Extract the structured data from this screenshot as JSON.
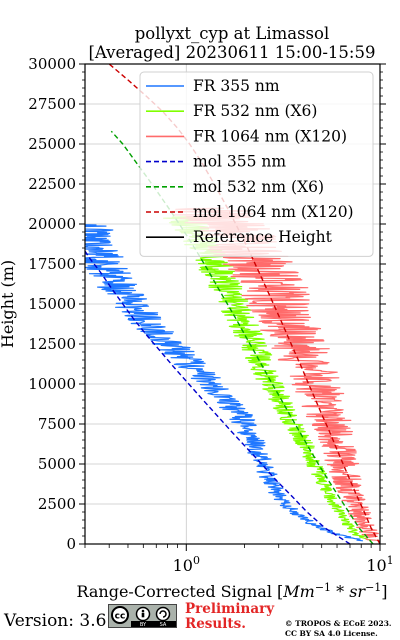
{
  "chart_data": {
    "type": "line",
    "title": "pollyxt_cyp at Limassol",
    "subtitle": "[Averaged] 20230611 15:00-15:59",
    "xlabel": "Range-Corrected Signal [Mm^-1 * sr^-1]",
    "ylabel": "Height (m)",
    "xscale": "log",
    "xlim": [
      0.3,
      10
    ],
    "ylim": [
      0,
      30000
    ],
    "x_ticks": [
      "10^0",
      "10^1"
    ],
    "y_ticks": [
      "0",
      "2500",
      "5000",
      "7500",
      "10000",
      "12500",
      "15000",
      "17500",
      "20000",
      "22500",
      "25000",
      "27500",
      "30000"
    ],
    "grid": true,
    "legend_position": "top-right",
    "legend": [
      {
        "label": "FR 355 nm",
        "color": "#1f77ff",
        "style": "solid"
      },
      {
        "label": "FR 532 nm (X6)",
        "color": "#80ff00",
        "style": "solid"
      },
      {
        "label": "FR 1064 nm (X120)",
        "color": "#ff6b6b",
        "style": "solid"
      },
      {
        "label": "mol 355 nm",
        "color": "#0000cc",
        "style": "dashed"
      },
      {
        "label": "mol 532 nm (X6)",
        "color": "#00a000",
        "style": "dashed"
      },
      {
        "label": "mol 1064 nm (X120)",
        "color": "#cc0000",
        "style": "dashed"
      },
      {
        "label": "Reference Height",
        "color": "#000000",
        "style": "solid"
      }
    ],
    "series": [
      {
        "name": "FR 355 nm",
        "color": "#1f77ff",
        "noise": 0.06,
        "points": [
          [
            8.0,
            200
          ],
          [
            6.0,
            600
          ],
          [
            4.5,
            1200
          ],
          [
            3.6,
            2000
          ],
          [
            3.0,
            3000
          ],
          [
            2.7,
            4000
          ],
          [
            2.5,
            5000
          ],
          [
            2.3,
            6000
          ],
          [
            2.1,
            7000
          ],
          [
            1.9,
            8000
          ],
          [
            1.6,
            9000
          ],
          [
            1.35,
            10000
          ],
          [
            1.1,
            11000
          ],
          [
            0.9,
            12000
          ],
          [
            0.75,
            13000
          ],
          [
            0.62,
            14000
          ],
          [
            0.52,
            15000
          ],
          [
            0.45,
            16000
          ],
          [
            0.4,
            17000
          ],
          [
            0.36,
            18000
          ],
          [
            0.33,
            19000
          ],
          [
            0.3,
            20000
          ]
        ]
      },
      {
        "name": "FR 532 nm (X6)",
        "color": "#80ff00",
        "noise": 0.05,
        "points": [
          [
            9.0,
            200
          ],
          [
            7.5,
            600
          ],
          [
            6.5,
            1500
          ],
          [
            5.8,
            2500
          ],
          [
            5.2,
            3500
          ],
          [
            4.8,
            4500
          ],
          [
            4.4,
            5500
          ],
          [
            4.0,
            6500
          ],
          [
            3.6,
            7500
          ],
          [
            3.2,
            8500
          ],
          [
            2.9,
            9500
          ],
          [
            2.6,
            10500
          ],
          [
            2.4,
            11500
          ],
          [
            2.2,
            12500
          ],
          [
            2.0,
            13500
          ],
          [
            1.85,
            14500
          ],
          [
            1.7,
            15500
          ],
          [
            1.55,
            16500
          ],
          [
            1.4,
            17500
          ],
          [
            1.25,
            18500
          ],
          [
            1.1,
            19500
          ],
          [
            0.95,
            20500
          ]
        ]
      },
      {
        "name": "FR 1064 nm (X120)",
        "color": "#ff6b6b",
        "noise": 0.1,
        "points": [
          [
            9.5,
            200
          ],
          [
            8.5,
            1000
          ],
          [
            7.8,
            2000
          ],
          [
            7.2,
            3000
          ],
          [
            6.8,
            4000
          ],
          [
            6.4,
            5000
          ],
          [
            6.0,
            6000
          ],
          [
            5.7,
            7000
          ],
          [
            5.4,
            8000
          ],
          [
            5.0,
            9000
          ],
          [
            4.7,
            10000
          ],
          [
            4.3,
            11000
          ],
          [
            4.0,
            12000
          ],
          [
            3.6,
            13000
          ],
          [
            3.3,
            14000
          ],
          [
            3.0,
            15000
          ],
          [
            2.8,
            16000
          ],
          [
            2.5,
            17000
          ],
          [
            2.2,
            18000
          ],
          [
            1.9,
            19000
          ],
          [
            1.6,
            20000
          ],
          [
            1.3,
            21000
          ]
        ]
      },
      {
        "name": "mol 355 nm",
        "color": "#0000cc",
        "dashed": true,
        "points": [
          [
            7.0,
            0
          ],
          [
            5.2,
            1000
          ],
          [
            4.2,
            2000
          ],
          [
            3.5,
            3000
          ],
          [
            2.9,
            4000
          ],
          [
            2.45,
            5000
          ],
          [
            2.05,
            6000
          ],
          [
            1.72,
            7000
          ],
          [
            1.45,
            8000
          ],
          [
            1.22,
            9000
          ],
          [
            1.03,
            10000
          ],
          [
            0.87,
            11000
          ],
          [
            0.74,
            12000
          ],
          [
            0.63,
            13000
          ],
          [
            0.54,
            14000
          ],
          [
            0.47,
            15000
          ],
          [
            0.41,
            16000
          ],
          [
            0.36,
            17000
          ],
          [
            0.32,
            17800
          ],
          [
            0.3,
            18300
          ]
        ]
      },
      {
        "name": "mol 532 nm (X6)",
        "color": "#00a000",
        "dashed": true,
        "points": [
          [
            9.2,
            0
          ],
          [
            7.8,
            1000
          ],
          [
            6.9,
            2000
          ],
          [
            6.1,
            3000
          ],
          [
            5.4,
            4000
          ],
          [
            4.8,
            5000
          ],
          [
            4.3,
            6000
          ],
          [
            3.85,
            7000
          ],
          [
            3.45,
            8000
          ],
          [
            3.1,
            9000
          ],
          [
            2.78,
            10000
          ],
          [
            2.5,
            11000
          ],
          [
            2.25,
            12000
          ],
          [
            2.02,
            13000
          ],
          [
            1.82,
            14000
          ],
          [
            1.63,
            15000
          ],
          [
            1.46,
            16000
          ],
          [
            1.31,
            17000
          ],
          [
            1.17,
            18000
          ],
          [
            1.04,
            19000
          ],
          [
            0.92,
            20000
          ],
          [
            0.81,
            21000
          ],
          [
            0.71,
            22000
          ],
          [
            0.62,
            23000
          ],
          [
            0.54,
            24000
          ],
          [
            0.47,
            25000
          ],
          [
            0.41,
            25800
          ]
        ]
      },
      {
        "name": "mol 1064 nm (X120)",
        "color": "#cc0000",
        "dashed": true,
        "points": [
          [
            10.0,
            0
          ],
          [
            9.0,
            1000
          ],
          [
            8.3,
            2000
          ],
          [
            7.6,
            3000
          ],
          [
            7.0,
            4000
          ],
          [
            6.45,
            5000
          ],
          [
            5.95,
            6000
          ],
          [
            5.5,
            7000
          ],
          [
            5.05,
            8000
          ],
          [
            4.65,
            9000
          ],
          [
            4.28,
            10000
          ],
          [
            3.95,
            11000
          ],
          [
            3.63,
            12000
          ],
          [
            3.34,
            13000
          ],
          [
            3.07,
            14000
          ],
          [
            2.82,
            15000
          ],
          [
            2.59,
            16000
          ],
          [
            2.37,
            17000
          ],
          [
            2.17,
            18000
          ],
          [
            1.98,
            19000
          ],
          [
            1.8,
            20000
          ],
          [
            1.63,
            21000
          ],
          [
            1.47,
            22000
          ],
          [
            1.32,
            23000
          ],
          [
            1.18,
            24000
          ],
          [
            1.04,
            25000
          ],
          [
            0.9,
            26000
          ],
          [
            0.76,
            27000
          ],
          [
            0.62,
            28000
          ],
          [
            0.5,
            29000
          ],
          [
            0.4,
            30000
          ]
        ]
      },
      {
        "name": "Reference Height",
        "color": "#000000",
        "noise": 0.04,
        "segments": [
          [
            [
              2.1,
              6500
            ],
            [
              2.3,
              6000
            ],
            [
              2.5,
              5500
            ],
            [
              2.7,
              5000
            ]
          ],
          [
            [
              3.7,
              7500
            ],
            [
              4.0,
              6800
            ],
            [
              4.3,
              6200
            ]
          ],
          [
            [
              5.4,
              6400
            ],
            [
              6.0,
              5800
            ],
            [
              6.5,
              5300
            ],
            [
              7.1,
              4800
            ]
          ]
        ]
      }
    ]
  },
  "footer": {
    "version": "Version: 3.6",
    "license_badge": "CC BY SA",
    "preliminary_line1": "Preliminary",
    "preliminary_line2": "Results.",
    "copyright_line1": "© TROPOS & ECoE 2023.",
    "copyright_line2": "CC BY SA 4.0 License."
  }
}
